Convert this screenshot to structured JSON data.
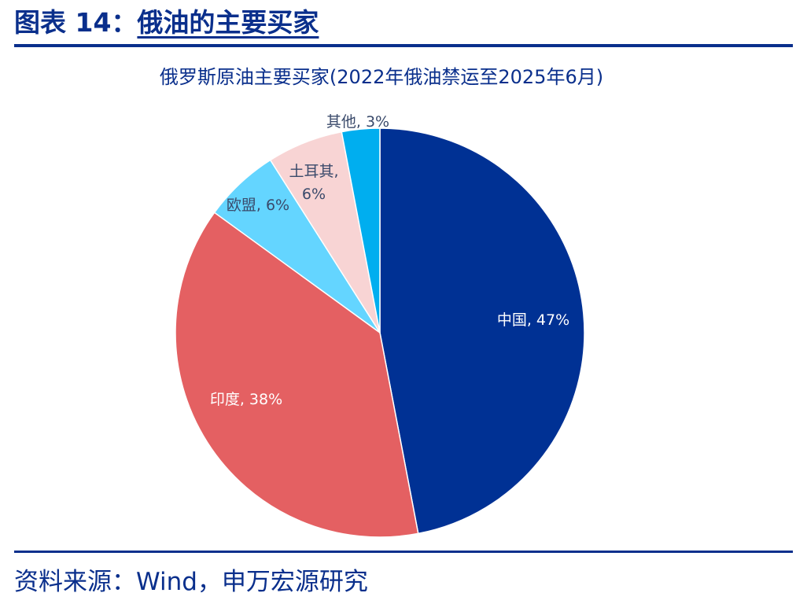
{
  "header": {
    "figure_no": "图表 14：",
    "title": "俄油的主要买家"
  },
  "source": "资料来源：Wind，申万宏源研究",
  "colors": {
    "brand": "#0a2f8c"
  },
  "chart_data": {
    "type": "pie",
    "title": "俄罗斯原油主要买家(2022年俄油禁运至2025年6月)",
    "start_angle_deg": 0,
    "direction": "clockwise",
    "slices": [
      {
        "label": "中国",
        "value": 47,
        "display": "中国, 47%",
        "color": "#003194",
        "label_color": "#ffffff"
      },
      {
        "label": "印度",
        "value": 38,
        "display": "印度, 38%",
        "color": "#e46062",
        "label_color": "#ffffff"
      },
      {
        "label": "欧盟",
        "value": 6,
        "display": "欧盟, 6%",
        "color": "#64d5ff",
        "label_color": "#3a4a6b"
      },
      {
        "label": "土耳其",
        "value": 6,
        "display": "土耳其, 6%",
        "line1": "土耳其,",
        "line2": "6%",
        "color": "#f8d4d4",
        "label_color": "#3a4a6b"
      },
      {
        "label": "其他",
        "value": 3,
        "display": "其他, 3%",
        "color": "#00aeef",
        "label_color": "#3a4a6b"
      }
    ]
  }
}
